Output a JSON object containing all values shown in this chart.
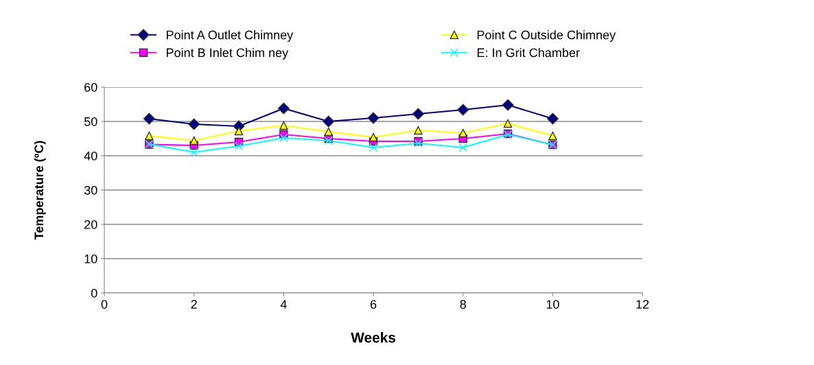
{
  "chart_data": {
    "type": "line",
    "xlabel": "Weeks",
    "ylabel": "Temperature (ºC)",
    "x": [
      1,
      2,
      3,
      4,
      5,
      6,
      7,
      8,
      9,
      10
    ],
    "series": [
      {
        "name": "Point A Outlet Chimney",
        "color": "#000080",
        "marker": "diamond",
        "values": [
          50.8,
          49.2,
          48.6,
          53.8,
          50,
          51,
          52.2,
          53.4,
          54.8,
          50.8
        ]
      },
      {
        "name": "Point B Inlet Chim ney",
        "color": "#ff00ff",
        "marker": "square",
        "values": [
          43.3,
          43,
          44,
          46.2,
          45,
          44.2,
          44.2,
          45,
          46.4,
          43.2
        ]
      },
      {
        "name": "Point C Outside Chimney",
        "color": "#ffff00",
        "marker": "triangle",
        "values": [
          45.8,
          44.4,
          47.2,
          48.8,
          47,
          45.4,
          47.4,
          46.6,
          49.4,
          45.8
        ]
      },
      {
        "name": "E: In Grit Chamber",
        "color": "#00ffff",
        "marker": "cross",
        "values": [
          43.4,
          41,
          42.8,
          45.2,
          44.4,
          42.4,
          43.6,
          42.4,
          46.2,
          43.2
        ]
      }
    ],
    "xlim": [
      0,
      12
    ],
    "xticks": [
      0,
      2,
      4,
      6,
      8,
      10,
      12
    ],
    "ylim": [
      0,
      60
    ],
    "yticks": [
      0,
      10,
      20,
      30,
      40,
      50,
      60
    ],
    "grid": "y",
    "legend": "top"
  }
}
